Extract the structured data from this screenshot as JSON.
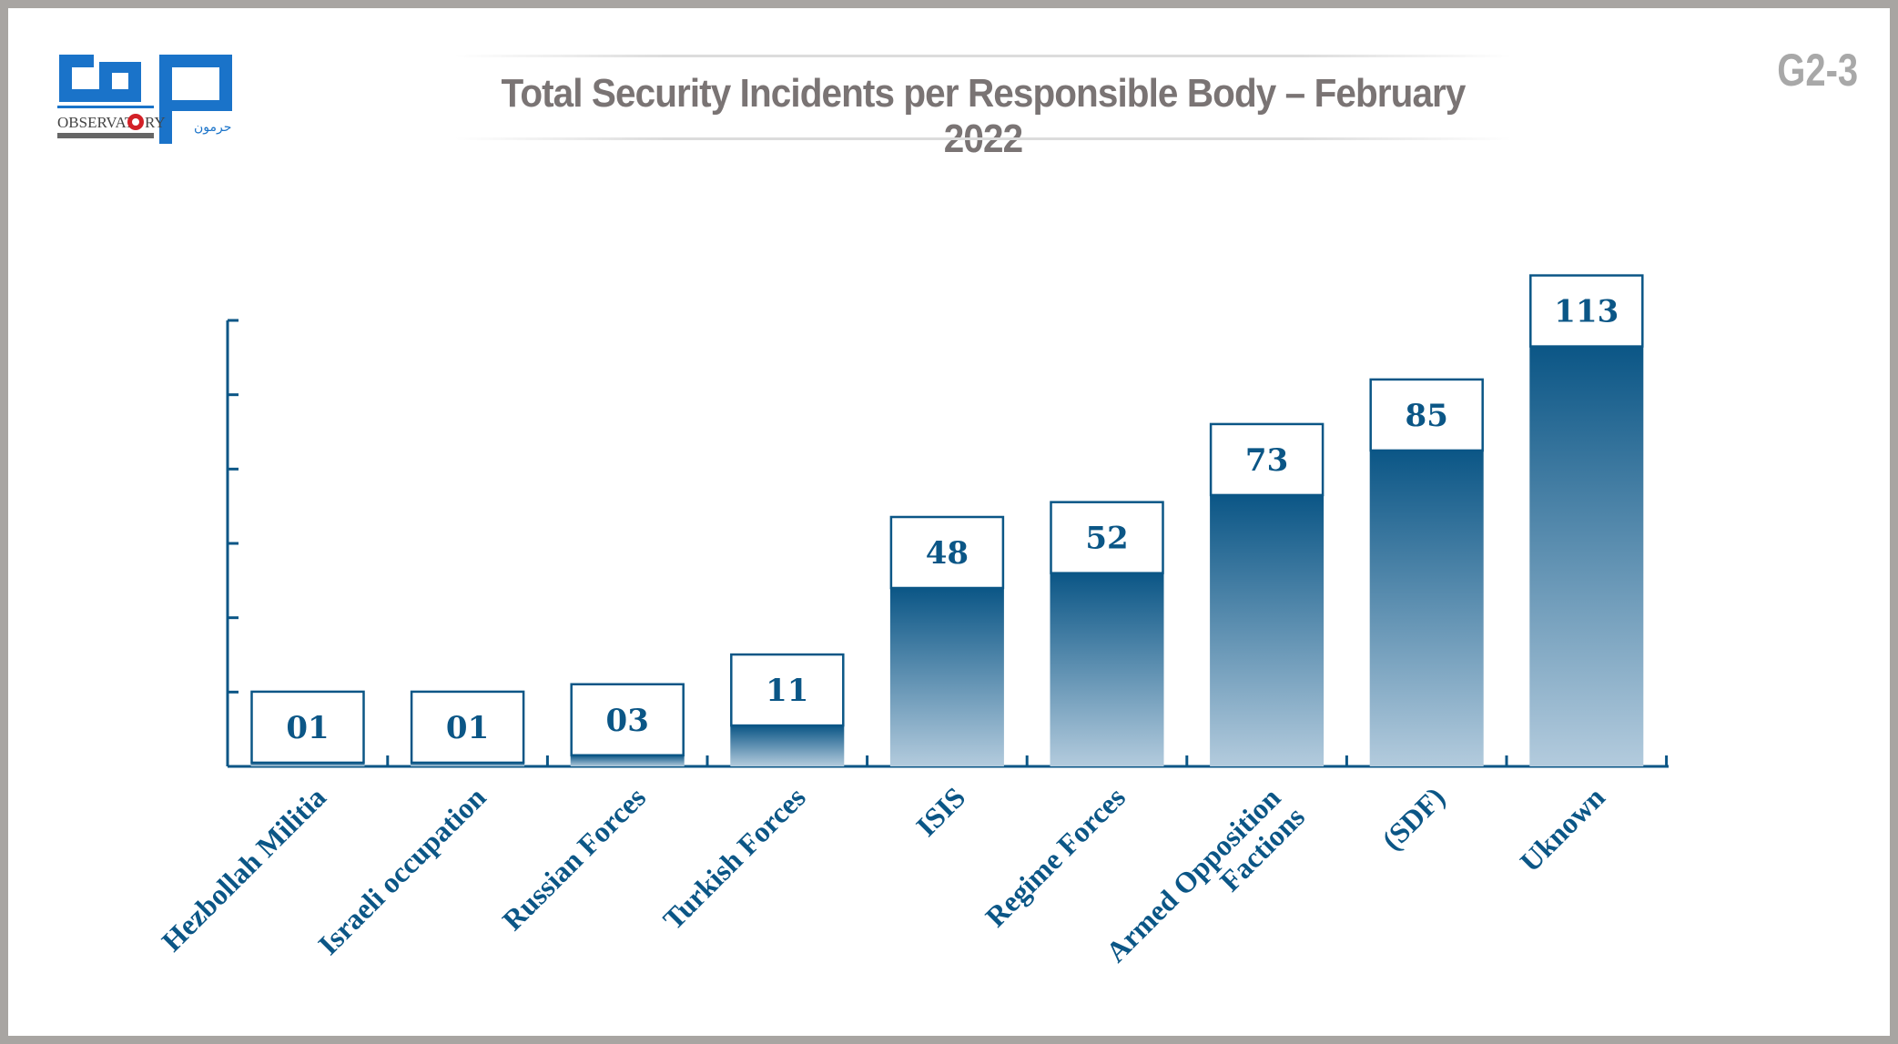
{
  "header": {
    "title": "Total Security Incidents per Responsible Body – February 2022",
    "code": "G2-3",
    "logo_text": "OBSERVATORY HARMOON مرصد حرمون"
  },
  "colors": {
    "bar_top": "#0b5686",
    "bar_bottom": "#b3cbdd",
    "axis": "#0b5686",
    "title": "#7a7474",
    "frame": "#a8a5a2"
  },
  "chart_data": {
    "type": "bar",
    "title": "Total Security Incidents per Responsible Body – February 2022",
    "categories": [
      "Hezbollah Militia",
      "Israeli occupation",
      "Russian Forces",
      "Turkish Forces",
      "ISIS",
      "Regime Forces",
      "Armed Opposition Factions",
      "(SDF)",
      "Uknown"
    ],
    "category_lines": [
      [
        "Hezbollah Militia"
      ],
      [
        "Israeli occupation"
      ],
      [
        "Russian Forces"
      ],
      [
        "Turkish Forces"
      ],
      [
        "ISIS"
      ],
      [
        "Regime Forces"
      ],
      [
        "Armed Opposition",
        "Factions"
      ],
      [
        "(SDF)"
      ],
      [
        "Uknown"
      ]
    ],
    "values": [
      1,
      1,
      3,
      11,
      48,
      52,
      73,
      85,
      113
    ],
    "data_labels": [
      "01",
      "01",
      "03",
      "11",
      "48",
      "52",
      "73",
      "85",
      "113"
    ],
    "xlabel": "",
    "ylabel": "",
    "ylim": [
      0,
      120
    ],
    "ytick_step": 20,
    "ytick_labels_shown": false,
    "grid": false,
    "legend": "none"
  }
}
